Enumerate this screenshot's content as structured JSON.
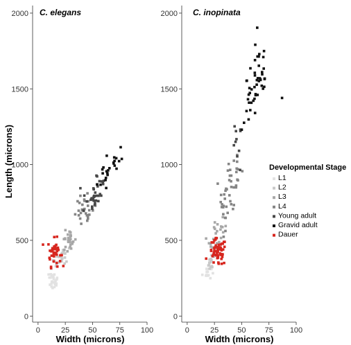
{
  "chart_data": {
    "type": "scatter",
    "ylabel": "Length (microns)",
    "xlabel": "Width (microns)",
    "xlim": [
      -5,
      100
    ],
    "ylim": [
      -40,
      2050
    ],
    "x_ticks": [
      0,
      25,
      50,
      75,
      100
    ],
    "y_ticks": [
      0,
      500,
      1000,
      1500,
      2000
    ],
    "grid": false,
    "legend": {
      "title": "Developmental Stage",
      "placement": "right",
      "entries": [
        {
          "stage": "L1",
          "color": "#e2e2e2"
        },
        {
          "stage": "L2",
          "color": "#c9c9c9"
        },
        {
          "stage": "L3",
          "color": "#a7a7a7"
        },
        {
          "stage": "L4",
          "color": "#858585"
        },
        {
          "stage": "Young adult",
          "color": "#474747"
        },
        {
          "stage": "Gravid adult",
          "color": "#111111"
        },
        {
          "stage": "Dauer",
          "color": "#d7261e"
        }
      ]
    },
    "panels": [
      {
        "title": "C. elegans",
        "series": [
          {
            "name": "L1",
            "clusters": [
              [
                15,
                220,
                2,
                25,
                16
              ],
              [
                13,
                260,
                2,
                25,
                12
              ]
            ]
          },
          {
            "name": "L2",
            "clusters": [
              [
                20,
                370,
                3,
                30,
                16
              ],
              [
                24,
                410,
                3,
                25,
                12
              ]
            ]
          },
          {
            "name": "L3",
            "clusters": [
              [
                27,
                480,
                3,
                35,
                18
              ],
              [
                30,
                520,
                2,
                25,
                10
              ]
            ]
          },
          {
            "name": "L4",
            "clusters": [
              [
                41,
                660,
                4,
                45,
                16
              ],
              [
                45,
                740,
                4,
                50,
                14
              ]
            ]
          },
          {
            "name": "Young adult",
            "clusters": [
              [
                48,
                780,
                4,
                60,
                18
              ],
              [
                55,
                860,
                4,
                60,
                16
              ]
            ]
          },
          {
            "name": "Gravid adult",
            "clusters": [
              [
                63,
                920,
                4,
                60,
                12
              ],
              [
                70,
                1040,
                4,
                50,
                12
              ]
            ]
          },
          {
            "name": "Dauer",
            "clusters": [
              [
                15,
                420,
                3,
                45,
                40
              ]
            ]
          }
        ]
      },
      {
        "title": "C. inopinata",
        "series": [
          {
            "name": "L1",
            "clusters": [
              [
                18,
                290,
                2,
                25,
                14
              ]
            ]
          },
          {
            "name": "L2",
            "clusters": [
              [
                22,
                350,
                2,
                30,
                14
              ]
            ]
          },
          {
            "name": "L3",
            "clusters": [
              [
                26,
                500,
                3,
                50,
                18
              ],
              [
                30,
                560,
                3,
                40,
                10
              ]
            ]
          },
          {
            "name": "L4",
            "clusters": [
              [
                35,
                760,
                4,
                90,
                18
              ],
              [
                40,
                850,
                3,
                80,
                18
              ],
              [
                45,
                970,
                3,
                40,
                8
              ]
            ]
          },
          {
            "name": "Young adult",
            "clusters": [
              [
                44,
                1080,
                2,
                45,
                4
              ],
              [
                47,
                1200,
                3,
                40,
                6
              ]
            ]
          },
          {
            "name": "Gravid adult",
            "clusters": [
              [
                58,
                1360,
                4,
                70,
                14
              ],
              [
                65,
                1560,
                5,
                90,
                26
              ],
              [
                66,
                1740,
                4,
                50,
                8
              ],
              [
                87,
                1440,
                0,
                0,
                1
              ]
            ]
          },
          {
            "name": "Dauer",
            "clusters": [
              [
                28,
                420,
                4,
                45,
                55
              ]
            ]
          }
        ]
      }
    ]
  }
}
